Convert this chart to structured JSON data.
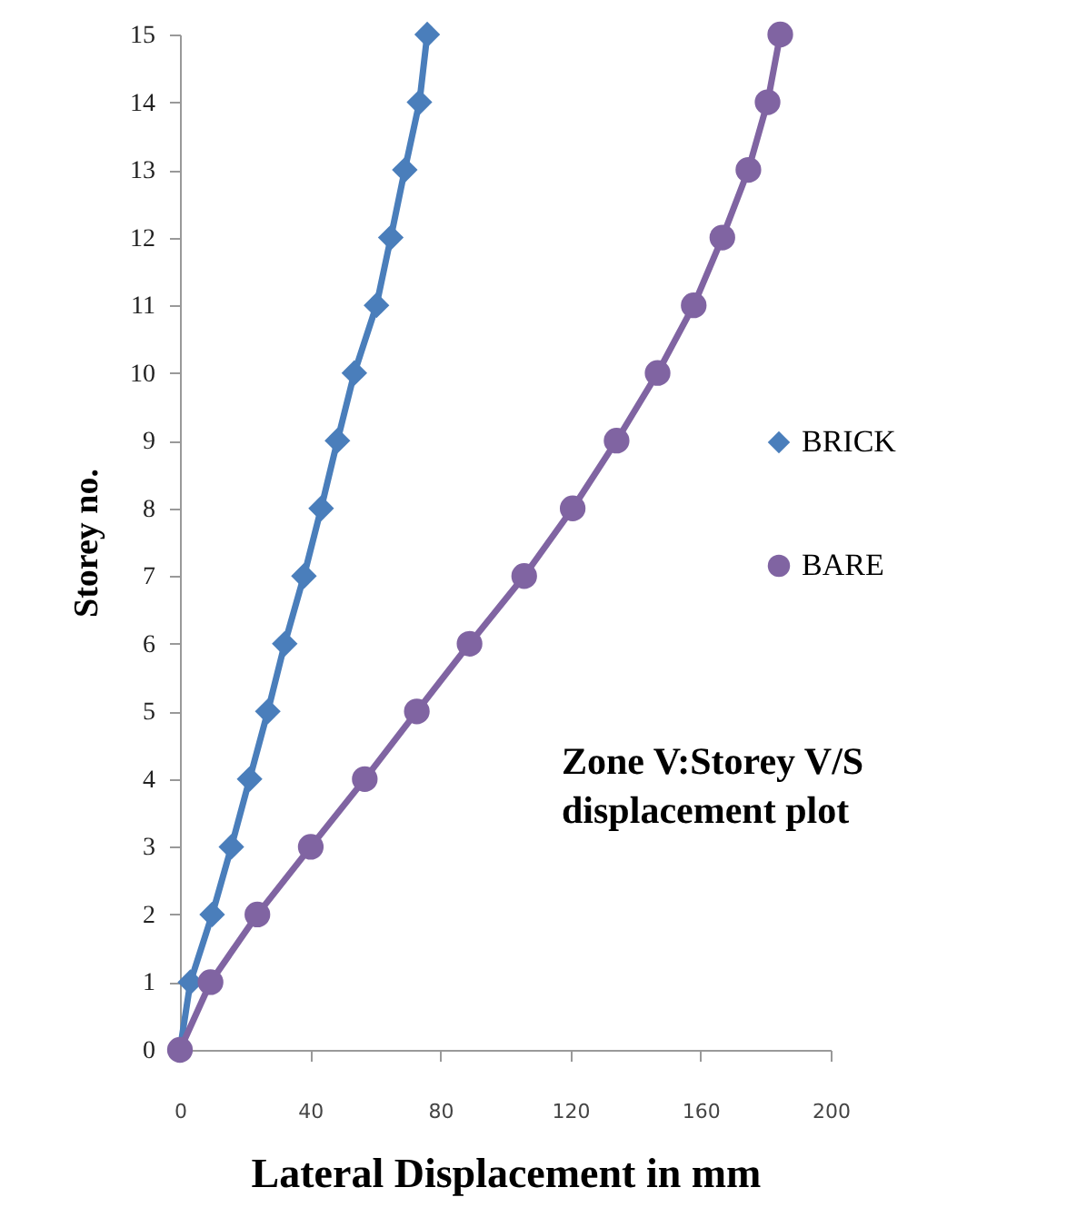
{
  "chart_data": {
    "type": "line",
    "xlabel": "Lateral  Displacement in mm",
    "ylabel": "Storey no.",
    "annotations": [
      "Zone V:Storey V/S displacement plot"
    ],
    "series": [
      {
        "name": "BRICK",
        "color": "#4a7ebb",
        "marker": "diamond",
        "x": [
          0,
          3.2,
          9.9,
          15.8,
          21.4,
          27,
          32.2,
          38.1,
          43.4,
          48.4,
          53.6,
          60.4,
          64.8,
          69.1,
          73.6,
          76
        ],
        "values": [
          0,
          1,
          2,
          3,
          4,
          5,
          6,
          7,
          8,
          9,
          10,
          11,
          12,
          13,
          14,
          15
        ]
      },
      {
        "name": "BARE",
        "color": "#8064a2",
        "marker": "circle",
        "x": [
          0,
          9.4,
          23.8,
          40.2,
          56.8,
          72.8,
          89,
          105.8,
          120.7,
          134.2,
          146.8,
          157.9,
          166.7,
          174.7,
          180.6,
          184.5
        ],
        "values": [
          0,
          1,
          2,
          3,
          4,
          5,
          6,
          7,
          8,
          9,
          10,
          11,
          12,
          13,
          14,
          15
        ]
      }
    ],
    "xlim": [
      0,
      200
    ],
    "xticks": [
      0,
      40,
      80,
      120,
      160,
      200
    ],
    "ylim": [
      0,
      15
    ],
    "yticks": [
      0,
      1,
      2,
      3,
      4,
      5,
      6,
      7,
      8,
      9,
      10,
      11,
      12,
      13,
      14,
      15
    ],
    "grid": false,
    "legend": "right",
    "line_style": "solid"
  }
}
